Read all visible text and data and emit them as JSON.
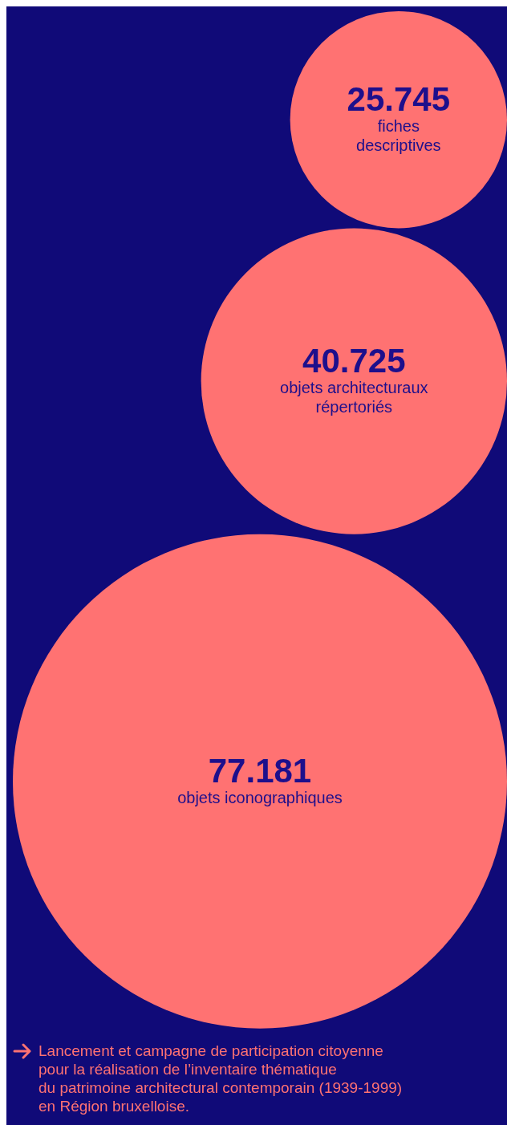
{
  "chart_data": {
    "type": "other",
    "categories": [
      "fiches\ndescriptives",
      "objets architecturaux\nrépertoriés",
      "objets iconographiques"
    ],
    "values": [
      25745,
      40725,
      77181
    ],
    "value_labels": [
      "25.745",
      "40.725",
      "77.181"
    ],
    "colors": [
      "#ff7272",
      "#ff7272",
      "#ff7272"
    ],
    "annotations": [
      "Lancement et campagne de participation citoyenne\npour la réalisation de l’inventaire thématique\ndu patrimoine architectural contemporain (1939-1999)\nen Région bruxelloise."
    ]
  }
}
